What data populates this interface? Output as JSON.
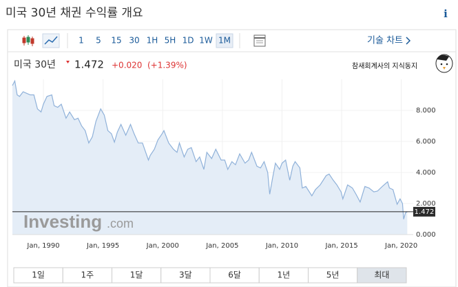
{
  "page_title": "미국 30년 채권 수익률 개요",
  "toolbar": {
    "intervals": [
      "1",
      "5",
      "15",
      "30",
      "1H",
      "5H",
      "1D",
      "1W",
      "1M"
    ],
    "active": "1M",
    "technical_chart": "기술 차트"
  },
  "quote": {
    "symbol": "미국 30년",
    "price": 1.472,
    "change": "+0.020",
    "change_pct": "(+1.39%)"
  },
  "watermark": "참새회계사의 지식동지",
  "brand": [
    "Investing",
    ".com"
  ],
  "ranges": {
    "items": [
      "1일",
      "1주",
      "1달",
      "3달",
      "6달",
      "1년",
      "5년",
      "최대"
    ],
    "active": "최대"
  },
  "chart_data": {
    "type": "area",
    "color": "#8fb1d9",
    "fill": "#e4edf7",
    "x": [
      1987.4,
      1987.6,
      1987.8,
      1988.0,
      1988.3,
      1988.6,
      1988.9,
      1989.2,
      1989.5,
      1989.8,
      1990.0,
      1990.3,
      1990.7,
      1990.9,
      1991.2,
      1991.5,
      1991.9,
      1992.2,
      1992.6,
      1992.9,
      1993.2,
      1993.5,
      1993.8,
      1994.1,
      1994.4,
      1994.8,
      1995.1,
      1995.4,
      1995.7,
      1995.95,
      1996.2,
      1996.5,
      1996.9,
      1997.3,
      1997.6,
      1997.95,
      1998.3,
      1998.8,
      1998.95,
      1999.3,
      1999.6,
      1999.95,
      2000.1,
      2000.5,
      2000.9,
      2001.2,
      2001.4,
      2001.8,
      2002.1,
      2002.4,
      2002.8,
      2003.1,
      2003.45,
      2003.7,
      2004.1,
      2004.45,
      2004.9,
      2005.2,
      2005.45,
      2005.8,
      2006.1,
      2006.45,
      2006.9,
      2007.2,
      2007.45,
      2007.9,
      2008.2,
      2008.5,
      2008.8,
      2008.97,
      2009.2,
      2009.45,
      2009.8,
      2010.0,
      2010.3,
      2010.65,
      2010.9,
      2011.1,
      2011.5,
      2011.7,
      2012.0,
      2012.5,
      2012.8,
      2013.2,
      2013.7,
      2013.95,
      2014.3,
      2014.6,
      2014.95,
      2015.1,
      2015.5,
      2015.9,
      2016.2,
      2016.55,
      2016.95,
      2017.3,
      2017.7,
      2018.0,
      2018.4,
      2018.85,
      2019.0,
      2019.3,
      2019.65,
      2019.9,
      2020.1,
      2020.2,
      2020.35,
      2020.5
    ],
    "values": [
      9.6,
      9.9,
      9.0,
      8.9,
      9.2,
      9.1,
      9.0,
      9.0,
      8.1,
      7.9,
      8.4,
      8.9,
      9.0,
      8.3,
      8.2,
      8.4,
      7.5,
      7.9,
      7.4,
      7.5,
      7.0,
      6.7,
      5.9,
      6.3,
      7.3,
      8.1,
      7.7,
      6.7,
      6.5,
      5.95,
      6.6,
      7.1,
      6.4,
      7.1,
      6.5,
      5.9,
      5.9,
      4.8,
      5.1,
      5.5,
      6.1,
      6.5,
      6.7,
      5.9,
      5.5,
      5.3,
      5.9,
      5.0,
      5.5,
      5.6,
      4.7,
      5.0,
      4.2,
      5.3,
      4.9,
      5.5,
      4.8,
      4.8,
      4.2,
      4.7,
      4.5,
      5.2,
      4.6,
      4.8,
      5.3,
      4.4,
      4.3,
      4.7,
      4.0,
      2.6,
      3.6,
      4.6,
      4.2,
      4.6,
      4.8,
      3.5,
      4.4,
      4.7,
      4.3,
      3.0,
      3.1,
      2.5,
      2.9,
      3.2,
      3.8,
      3.9,
      3.5,
      3.2,
      2.75,
      2.3,
      3.2,
      3.0,
      2.6,
      2.1,
      3.1,
      3.0,
      2.75,
      2.8,
      3.1,
      3.4,
      3.0,
      2.9,
      1.95,
      2.3,
      2.0,
      0.99,
      1.4,
      1.472
    ],
    "xlim": [
      1987.4,
      2021.0
    ],
    "ylim": [
      0,
      10
    ],
    "xticks": [
      {
        "value": 1990,
        "label": "Jan, 1990"
      },
      {
        "value": 1995,
        "label": "Jan, 1995"
      },
      {
        "value": 2000,
        "label": "Jan, 2000"
      },
      {
        "value": 2005,
        "label": "Jan, 2005"
      },
      {
        "value": 2010,
        "label": "Jan, 2010"
      },
      {
        "value": 2015,
        "label": "Jan, 2015"
      },
      {
        "value": 2020,
        "label": "Jan, 2020"
      }
    ],
    "yticks": [
      {
        "value": 0,
        "label": "0.000"
      },
      {
        "value": 2,
        "label": "2.000"
      },
      {
        "value": 4,
        "label": "4.000"
      },
      {
        "value": 6,
        "label": "6.000"
      },
      {
        "value": 8,
        "label": "8.000"
      }
    ]
  }
}
